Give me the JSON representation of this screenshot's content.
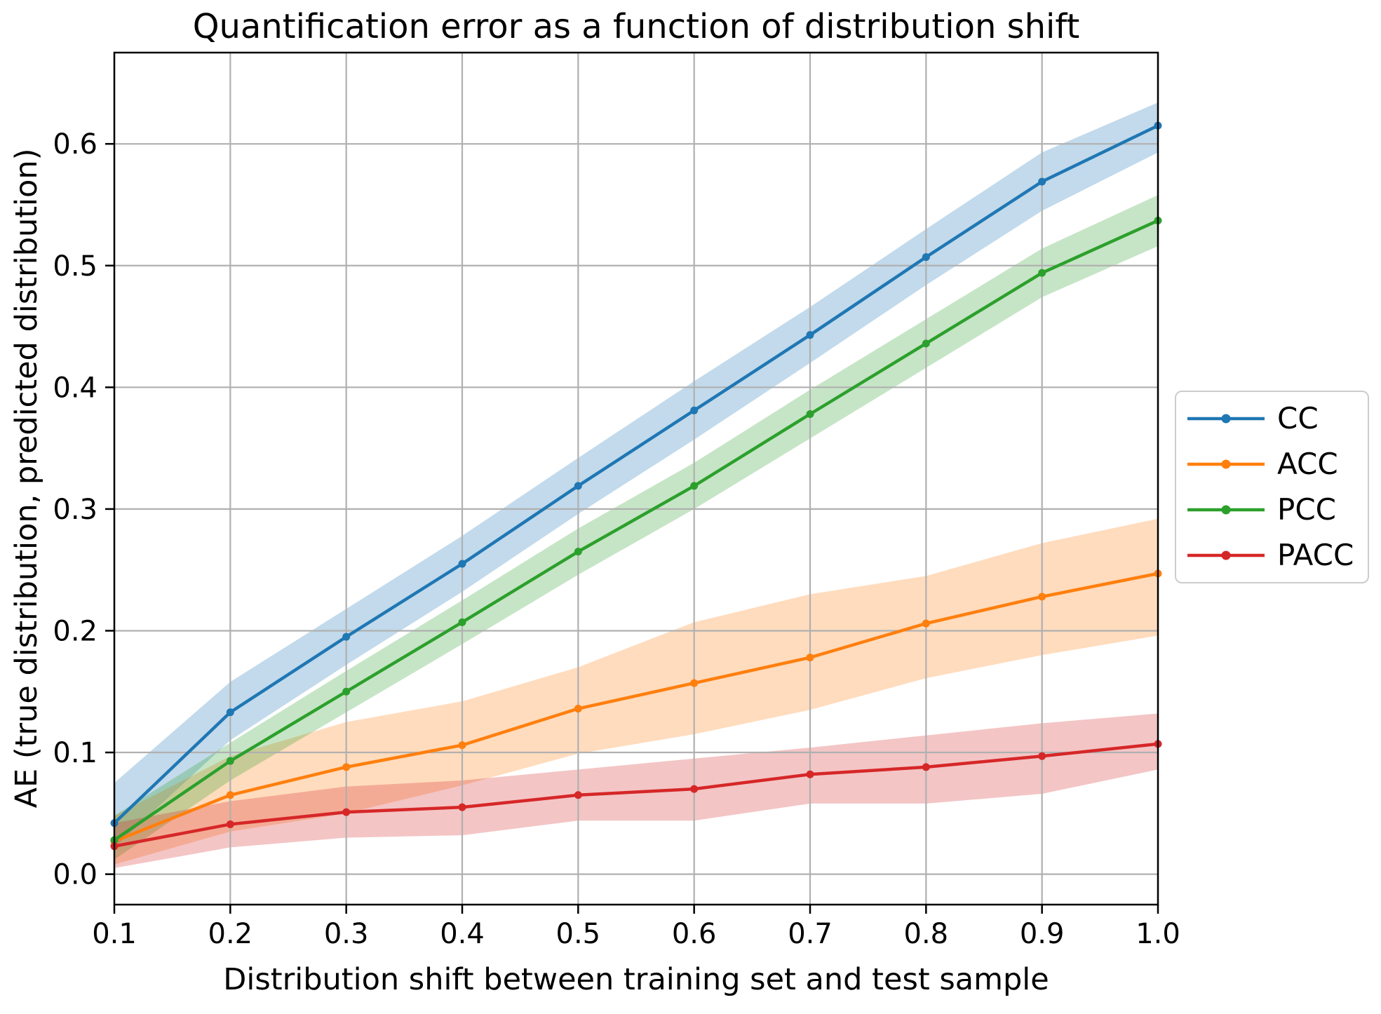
{
  "chart_data": {
    "type": "line",
    "title": "Quantification error as a function of distribution shift",
    "xlabel": "Distribution shift between training set and test sample",
    "ylabel": "AE (true distribution, predicted distribution)",
    "x": [
      0.1,
      0.2,
      0.3,
      0.4,
      0.5,
      0.6,
      0.7,
      0.8,
      0.9,
      1.0
    ],
    "x_tick_labels": [
      "0.1",
      "0.2",
      "0.3",
      "0.4",
      "0.5",
      "0.6",
      "0.7",
      "0.8",
      "0.9",
      "1.0"
    ],
    "y_tick_values": [
      0.0,
      0.1,
      0.2,
      0.3,
      0.4,
      0.5,
      0.6
    ],
    "y_tick_labels": [
      "0.0",
      "0.1",
      "0.2",
      "0.3",
      "0.4",
      "0.5",
      "0.6"
    ],
    "xlim": [
      0.1,
      1.0
    ],
    "ylim": [
      -0.025,
      0.675
    ],
    "grid": true,
    "grid_color": "#b0b0b0",
    "band_opacity": 0.27,
    "legend_position": "right-outside",
    "series": [
      {
        "name": "CC",
        "color": "#1f77b4",
        "values": [
          0.042,
          0.133,
          0.195,
          0.255,
          0.319,
          0.381,
          0.443,
          0.507,
          0.569,
          0.615
        ],
        "band_lower": [
          0.022,
          0.11,
          0.172,
          0.232,
          0.296,
          0.357,
          0.42,
          0.484,
          0.545,
          0.593
        ],
        "band_upper": [
          0.075,
          0.158,
          0.218,
          0.278,
          0.342,
          0.405,
          0.466,
          0.53,
          0.593,
          0.634
        ]
      },
      {
        "name": "ACC",
        "color": "#ff7f0e",
        "values": [
          0.027,
          0.065,
          0.088,
          0.106,
          0.136,
          0.157,
          0.178,
          0.206,
          0.228,
          0.247
        ],
        "band_lower": [
          0.008,
          0.035,
          0.05,
          0.073,
          0.099,
          0.115,
          0.135,
          0.161,
          0.18,
          0.196
        ],
        "band_upper": [
          0.048,
          0.097,
          0.125,
          0.142,
          0.17,
          0.207,
          0.23,
          0.245,
          0.272,
          0.292
        ]
      },
      {
        "name": "PCC",
        "color": "#2ca02c",
        "values": [
          0.028,
          0.093,
          0.15,
          0.207,
          0.265,
          0.319,
          0.378,
          0.436,
          0.494,
          0.537
        ],
        "band_lower": [
          0.012,
          0.077,
          0.133,
          0.189,
          0.246,
          0.3,
          0.358,
          0.416,
          0.474,
          0.516
        ],
        "band_upper": [
          0.048,
          0.108,
          0.167,
          0.225,
          0.284,
          0.338,
          0.398,
          0.456,
          0.514,
          0.558
        ]
      },
      {
        "name": "PACC",
        "color": "#d62728",
        "values": [
          0.023,
          0.041,
          0.051,
          0.055,
          0.065,
          0.07,
          0.082,
          0.088,
          0.097,
          0.107
        ],
        "band_lower": [
          0.005,
          0.022,
          0.03,
          0.032,
          0.044,
          0.044,
          0.058,
          0.058,
          0.066,
          0.086
        ],
        "band_upper": [
          0.042,
          0.06,
          0.072,
          0.077,
          0.086,
          0.095,
          0.104,
          0.114,
          0.124,
          0.132
        ]
      }
    ]
  }
}
